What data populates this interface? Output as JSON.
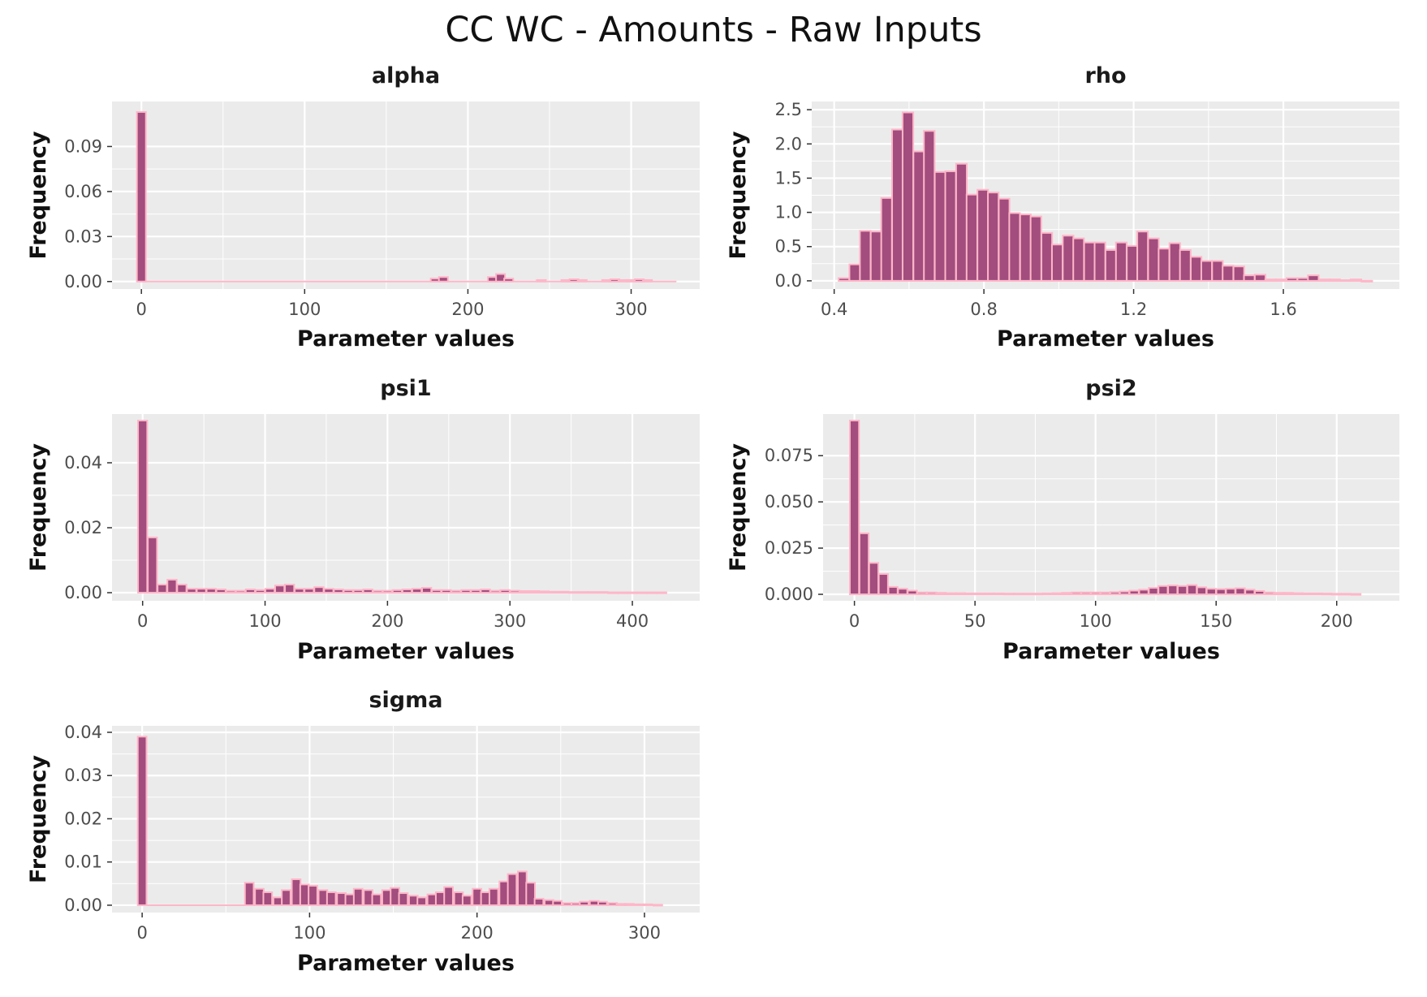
{
  "title": "CC WC - Amounts - Raw Inputs",
  "style": {
    "panel_bg": "#ebebeb",
    "grid_color": "#ffffff",
    "bar_fill": "#a24d7e",
    "bar_outline": "#ffb6c8"
  },
  "chart_data": [
    {
      "type": "bar",
      "title": "alpha",
      "xlabel": "Parameter values",
      "ylabel": "Frequency",
      "xlim": [
        -18,
        342
      ],
      "ylim": [
        -0.005,
        0.12
      ],
      "xticks": [
        0,
        100,
        200,
        300
      ],
      "xtick_labels": [
        "0",
        "100",
        "200",
        "300"
      ],
      "yticks": [
        0,
        0.03,
        0.06,
        0.09
      ],
      "ytick_labels": [
        "0.00",
        "0.03",
        "0.06",
        "0.09"
      ],
      "grid": true,
      "bin_width": 5.5,
      "x": [
        0,
        180,
        185,
        215,
        220,
        225,
        245,
        260,
        265,
        270,
        285,
        290,
        295,
        300,
        305,
        310
      ],
      "values": [
        0.113,
        0.002,
        0.003,
        0.003,
        0.005,
        0.002,
        0.001,
        0.001,
        0.0015,
        0.001,
        0.001,
        0.0015,
        0.001,
        0.001,
        0.0015,
        0.001
      ],
      "baseline_range": [
        0,
        325
      ]
    },
    {
      "type": "bar",
      "title": "rho",
      "xlabel": "Parameter values",
      "ylabel": "Frequency",
      "xlim": [
        0.34,
        1.91
      ],
      "ylim": [
        -0.12,
        2.62
      ],
      "xticks": [
        0.4,
        0.8,
        1.2,
        1.6
      ],
      "xtick_labels": [
        "0.4",
        "0.8",
        "1.2",
        "1.6"
      ],
      "yticks": [
        0,
        0.5,
        1.0,
        1.5,
        2.0,
        2.5
      ],
      "ytick_labels": [
        "0.0",
        "0.5",
        "1.0",
        "1.5",
        "2.0",
        "2.5"
      ],
      "grid": true,
      "bin_width": 0.0285,
      "x": [
        0.426,
        0.455,
        0.483,
        0.512,
        0.54,
        0.569,
        0.597,
        0.626,
        0.654,
        0.683,
        0.711,
        0.74,
        0.768,
        0.797,
        0.825,
        0.854,
        0.882,
        0.911,
        0.939,
        0.968,
        0.996,
        1.025,
        1.053,
        1.082,
        1.11,
        1.139,
        1.167,
        1.196,
        1.224,
        1.253,
        1.281,
        1.31,
        1.338,
        1.367,
        1.395,
        1.424,
        1.452,
        1.481,
        1.509,
        1.538,
        1.566,
        1.595,
        1.623,
        1.652,
        1.68,
        1.709,
        1.737,
        1.766,
        1.794,
        1.823
      ],
      "values": [
        0.04,
        0.24,
        0.73,
        0.72,
        1.21,
        2.21,
        2.46,
        1.89,
        2.19,
        1.59,
        1.6,
        1.71,
        1.26,
        1.33,
        1.29,
        1.2,
        0.99,
        0.97,
        0.94,
        0.7,
        0.53,
        0.66,
        0.62,
        0.56,
        0.56,
        0.45,
        0.56,
        0.51,
        0.72,
        0.62,
        0.47,
        0.55,
        0.45,
        0.35,
        0.29,
        0.29,
        0.22,
        0.21,
        0.08,
        0.09,
        0.02,
        0.02,
        0.04,
        0.04,
        0.08,
        0.02,
        0.02,
        0.01,
        0.02,
        0.0
      ]
    },
    {
      "type": "bar",
      "title": "psi1",
      "xlabel": "Parameter values",
      "ylabel": "Frequency",
      "xlim": [
        -25,
        455
      ],
      "ylim": [
        -0.0025,
        0.055
      ],
      "xticks": [
        0,
        100,
        200,
        300,
        400
      ],
      "xtick_labels": [
        "0",
        "100",
        "200",
        "300",
        "400"
      ],
      "yticks": [
        0,
        0.02,
        0.04
      ],
      "ytick_labels": [
        "0.00",
        "0.02",
        "0.04"
      ],
      "grid": true,
      "bin_width": 7.5,
      "x": [
        0,
        8,
        16,
        24,
        32,
        40,
        48,
        56,
        64,
        72,
        80,
        88,
        96,
        104,
        112,
        120,
        128,
        136,
        144,
        152,
        160,
        168,
        176,
        184,
        192,
        200,
        208,
        216,
        224,
        232,
        240,
        248,
        256,
        264,
        272,
        280,
        288,
        296,
        304,
        312,
        320,
        328,
        336,
        344,
        352,
        360,
        368,
        376,
        384,
        392,
        400,
        408,
        416,
        424
      ],
      "values": [
        0.053,
        0.017,
        0.0025,
        0.004,
        0.0025,
        0.0012,
        0.0012,
        0.0012,
        0.001,
        0.0006,
        0.0006,
        0.001,
        0.0008,
        0.0012,
        0.0022,
        0.0025,
        0.0012,
        0.0012,
        0.0017,
        0.0012,
        0.001,
        0.0008,
        0.0008,
        0.001,
        0.0006,
        0.0006,
        0.0008,
        0.001,
        0.0012,
        0.0015,
        0.0008,
        0.0008,
        0.0006,
        0.0008,
        0.0008,
        0.001,
        0.0006,
        0.0008,
        0.0006,
        0.0005,
        0.0005,
        0.0004,
        0.0003,
        0.0003,
        0.0002,
        0.0002,
        0.0002,
        0.0002,
        0.0001,
        0.0001,
        0.0001,
        0.0001,
        0.0001,
        0.0001
      ]
    },
    {
      "type": "bar",
      "title": "psi2",
      "xlabel": "Parameter values",
      "ylabel": "Frequency",
      "xlim": [
        -13,
        226
      ],
      "ylim": [
        -0.0035,
        0.0975
      ],
      "xticks": [
        0,
        50,
        100,
        150,
        200
      ],
      "xtick_labels": [
        "0",
        "50",
        "100",
        "150",
        "200"
      ],
      "yticks": [
        0,
        0.025,
        0.05,
        0.075
      ],
      "ytick_labels": [
        "0.000",
        "0.025",
        "0.050",
        "0.075"
      ],
      "grid": true,
      "bin_width": 3.8,
      "x": [
        0,
        4,
        8,
        12,
        16,
        20,
        24,
        28,
        32,
        36,
        40,
        44,
        48,
        52,
        56,
        60,
        64,
        68,
        72,
        76,
        80,
        84,
        88,
        92,
        96,
        100,
        104,
        108,
        112,
        116,
        120,
        124,
        128,
        132,
        136,
        140,
        144,
        148,
        152,
        156,
        160,
        164,
        168,
        172,
        176,
        180,
        184,
        188,
        192,
        196,
        200,
        204,
        208
      ],
      "values": [
        0.094,
        0.033,
        0.017,
        0.011,
        0.004,
        0.003,
        0.002,
        0.001,
        0.001,
        0.0008,
        0.0006,
        0.0006,
        0.0005,
        0.0005,
        0.0005,
        0.0005,
        0.0004,
        0.0004,
        0.0004,
        0.0004,
        0.0005,
        0.0006,
        0.0008,
        0.001,
        0.001,
        0.001,
        0.001,
        0.0012,
        0.0015,
        0.002,
        0.0025,
        0.0035,
        0.0045,
        0.0048,
        0.0045,
        0.005,
        0.0038,
        0.003,
        0.0028,
        0.003,
        0.0033,
        0.0025,
        0.0018,
        0.001,
        0.0008,
        0.0008,
        0.0006,
        0.0005,
        0.0005,
        0.0004,
        0.0003,
        0.0003,
        0.0002
      ]
    },
    {
      "type": "bar",
      "title": "sigma",
      "xlabel": "Parameter values",
      "ylabel": "Frequency",
      "xlim": [
        -18,
        333
      ],
      "ylim": [
        -0.0017,
        0.0415
      ],
      "xticks": [
        0,
        100,
        200,
        300
      ],
      "xtick_labels": [
        "0",
        "100",
        "200",
        "300"
      ],
      "yticks": [
        0,
        0.01,
        0.02,
        0.03,
        0.04
      ],
      "ytick_labels": [
        "0.00",
        "0.01",
        "0.02",
        "0.03",
        "0.04"
      ],
      "grid": true,
      "bin_width": 5.2,
      "x": [
        0,
        64,
        70,
        75,
        81,
        86,
        92,
        97,
        102,
        108,
        113,
        119,
        124,
        129,
        135,
        140,
        146,
        151,
        156,
        162,
        167,
        173,
        178,
        183,
        189,
        194,
        200,
        205,
        210,
        216,
        221,
        227,
        232,
        237,
        243,
        248,
        254,
        259,
        264,
        270,
        275,
        281,
        286,
        291,
        297,
        302,
        308
      ],
      "values": [
        0.039,
        0.0052,
        0.0038,
        0.003,
        0.0018,
        0.0035,
        0.006,
        0.0048,
        0.0045,
        0.0035,
        0.003,
        0.0028,
        0.0025,
        0.0038,
        0.0035,
        0.0025,
        0.0035,
        0.004,
        0.0028,
        0.0022,
        0.0018,
        0.0025,
        0.003,
        0.0042,
        0.003,
        0.0022,
        0.0038,
        0.003,
        0.0038,
        0.0055,
        0.0072,
        0.0078,
        0.0052,
        0.0015,
        0.0012,
        0.001,
        0.0005,
        0.0005,
        0.0008,
        0.001,
        0.0008,
        0.0005,
        0.0003,
        0.0003,
        0.0002,
        0.0002,
        0.0001
      ],
      "baseline_range": [
        0,
        70
      ]
    }
  ]
}
